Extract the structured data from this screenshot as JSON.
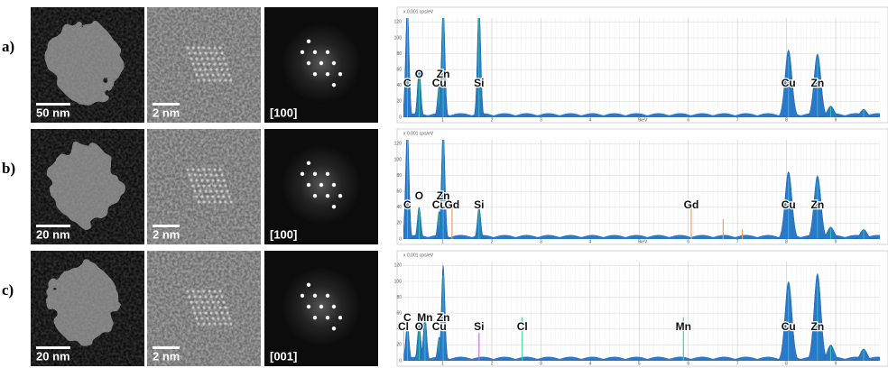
{
  "rows": [
    {
      "label": "a)",
      "panels": [
        "50 nm",
        "2 nm",
        "[100]"
      ],
      "spectrum": {
        "y_unit": "x 0.001 cps/eV",
        "x_unit": "keV",
        "xlim": [
          0.2,
          9.9
        ],
        "ylim": [
          0,
          125
        ],
        "xticks": [
          1,
          2,
          3,
          4,
          5,
          6,
          7,
          8,
          9
        ],
        "yticks": [
          0,
          20,
          40,
          60,
          80,
          100,
          120
        ],
        "peaks": [
          {
            "energy": 0.28,
            "height": 140
          },
          {
            "energy": 0.52,
            "height": 60
          },
          {
            "energy": 0.93,
            "height": 40
          },
          {
            "energy": 1.01,
            "height": 140
          },
          {
            "energy": 1.74,
            "height": 140
          },
          {
            "energy": 8.04,
            "height": 85
          },
          {
            "energy": 8.63,
            "height": 80
          },
          {
            "energy": 8.9,
            "height": 14
          },
          {
            "energy": 9.57,
            "height": 10
          }
        ],
        "lines": [],
        "labels": [
          {
            "text": "C",
            "energy": 0.28
          },
          {
            "text": "O",
            "energy": 0.52
          },
          {
            "text": "Cu",
            "energy": 0.93
          },
          {
            "text": "Zn",
            "energy": 1.01
          },
          {
            "text": "Si",
            "energy": 1.74
          },
          {
            "text": "Cu",
            "energy": 8.04
          },
          {
            "text": "Zn",
            "energy": 8.63
          }
        ]
      }
    },
    {
      "label": "b)",
      "panels": [
        "20 nm",
        "2 nm",
        "[100]"
      ],
      "spectrum": {
        "y_unit": "x 0.001 cps/eV",
        "x_unit": "keV",
        "xlim": [
          0.2,
          9.9
        ],
        "ylim": [
          0,
          125
        ],
        "xticks": [
          1,
          2,
          3,
          4,
          5,
          6,
          7,
          8,
          9
        ],
        "yticks": [
          0,
          20,
          40,
          60,
          80,
          100,
          120
        ],
        "peaks": [
          {
            "energy": 0.28,
            "height": 140
          },
          {
            "energy": 0.52,
            "height": 40
          },
          {
            "energy": 0.93,
            "height": 35
          },
          {
            "energy": 1.01,
            "height": 140
          },
          {
            "energy": 1.74,
            "height": 40
          },
          {
            "energy": 8.04,
            "height": 85
          },
          {
            "energy": 8.63,
            "height": 80
          },
          {
            "energy": 8.9,
            "height": 15
          },
          {
            "energy": 9.57,
            "height": 12
          }
        ],
        "lines": [
          {
            "energy": 1.19,
            "height": 40,
            "color": "#f0a060"
          },
          {
            "energy": 6.06,
            "height": 40,
            "color": "#f0a060"
          },
          {
            "energy": 6.71,
            "height": 25,
            "color": "#f0a060"
          },
          {
            "energy": 7.1,
            "height": 12,
            "color": "#f0a060"
          }
        ],
        "labels": [
          {
            "text": "C",
            "energy": 0.28
          },
          {
            "text": "O",
            "energy": 0.52
          },
          {
            "text": "Cu",
            "energy": 0.93
          },
          {
            "text": "Zn",
            "energy": 1.01
          },
          {
            "text": "Gd",
            "energy": 1.19
          },
          {
            "text": "Si",
            "energy": 1.74
          },
          {
            "text": "Gd",
            "energy": 6.06
          },
          {
            "text": "Cu",
            "energy": 8.04
          },
          {
            "text": "Zn",
            "energy": 8.63
          }
        ]
      }
    },
    {
      "label": "c)",
      "panels": [
        "20 nm",
        "2 nm",
        "[001]"
      ],
      "spectrum": {
        "y_unit": "x 0.001 cps/eV",
        "xlim": [
          0.2,
          9.9
        ],
        "ylim": [
          0,
          125
        ],
        "xticks": [
          1,
          2,
          3,
          4,
          5,
          6,
          7,
          8,
          9
        ],
        "yticks": [
          0,
          20,
          40,
          60,
          80,
          100,
          120
        ],
        "peaks": [
          {
            "energy": 0.28,
            "height": 45
          },
          {
            "energy": 0.52,
            "height": 45
          },
          {
            "energy": 0.64,
            "height": 55
          },
          {
            "energy": 0.93,
            "height": 30
          },
          {
            "energy": 1.01,
            "height": 120
          },
          {
            "energy": 8.04,
            "height": 100
          },
          {
            "energy": 8.63,
            "height": 110
          },
          {
            "energy": 8.9,
            "height": 20
          },
          {
            "energy": 9.57,
            "height": 15
          }
        ],
        "lines": [
          {
            "energy": 0.2,
            "height": 50,
            "color": "#40d0a0"
          },
          {
            "energy": 1.74,
            "height": 35,
            "color": "#c070e0"
          },
          {
            "energy": 2.62,
            "height": 55,
            "color": "#40d0a0"
          },
          {
            "energy": 5.9,
            "height": 55,
            "color": "#40d0a0"
          }
        ],
        "labels": [
          {
            "text": "Cl",
            "energy": 0.2
          },
          {
            "text": "C",
            "energy": 0.28
          },
          {
            "text": "O",
            "energy": 0.52
          },
          {
            "text": "Mn",
            "energy": 0.64
          },
          {
            "text": "Cu",
            "energy": 0.93
          },
          {
            "text": "Zn",
            "energy": 1.01
          },
          {
            "text": "Si",
            "energy": 1.74
          },
          {
            "text": "Cl",
            "energy": 2.62
          },
          {
            "text": "Mn",
            "energy": 5.9
          },
          {
            "text": "Cu",
            "energy": 8.04
          },
          {
            "text": "Zn",
            "energy": 8.63
          }
        ]
      }
    }
  ]
}
